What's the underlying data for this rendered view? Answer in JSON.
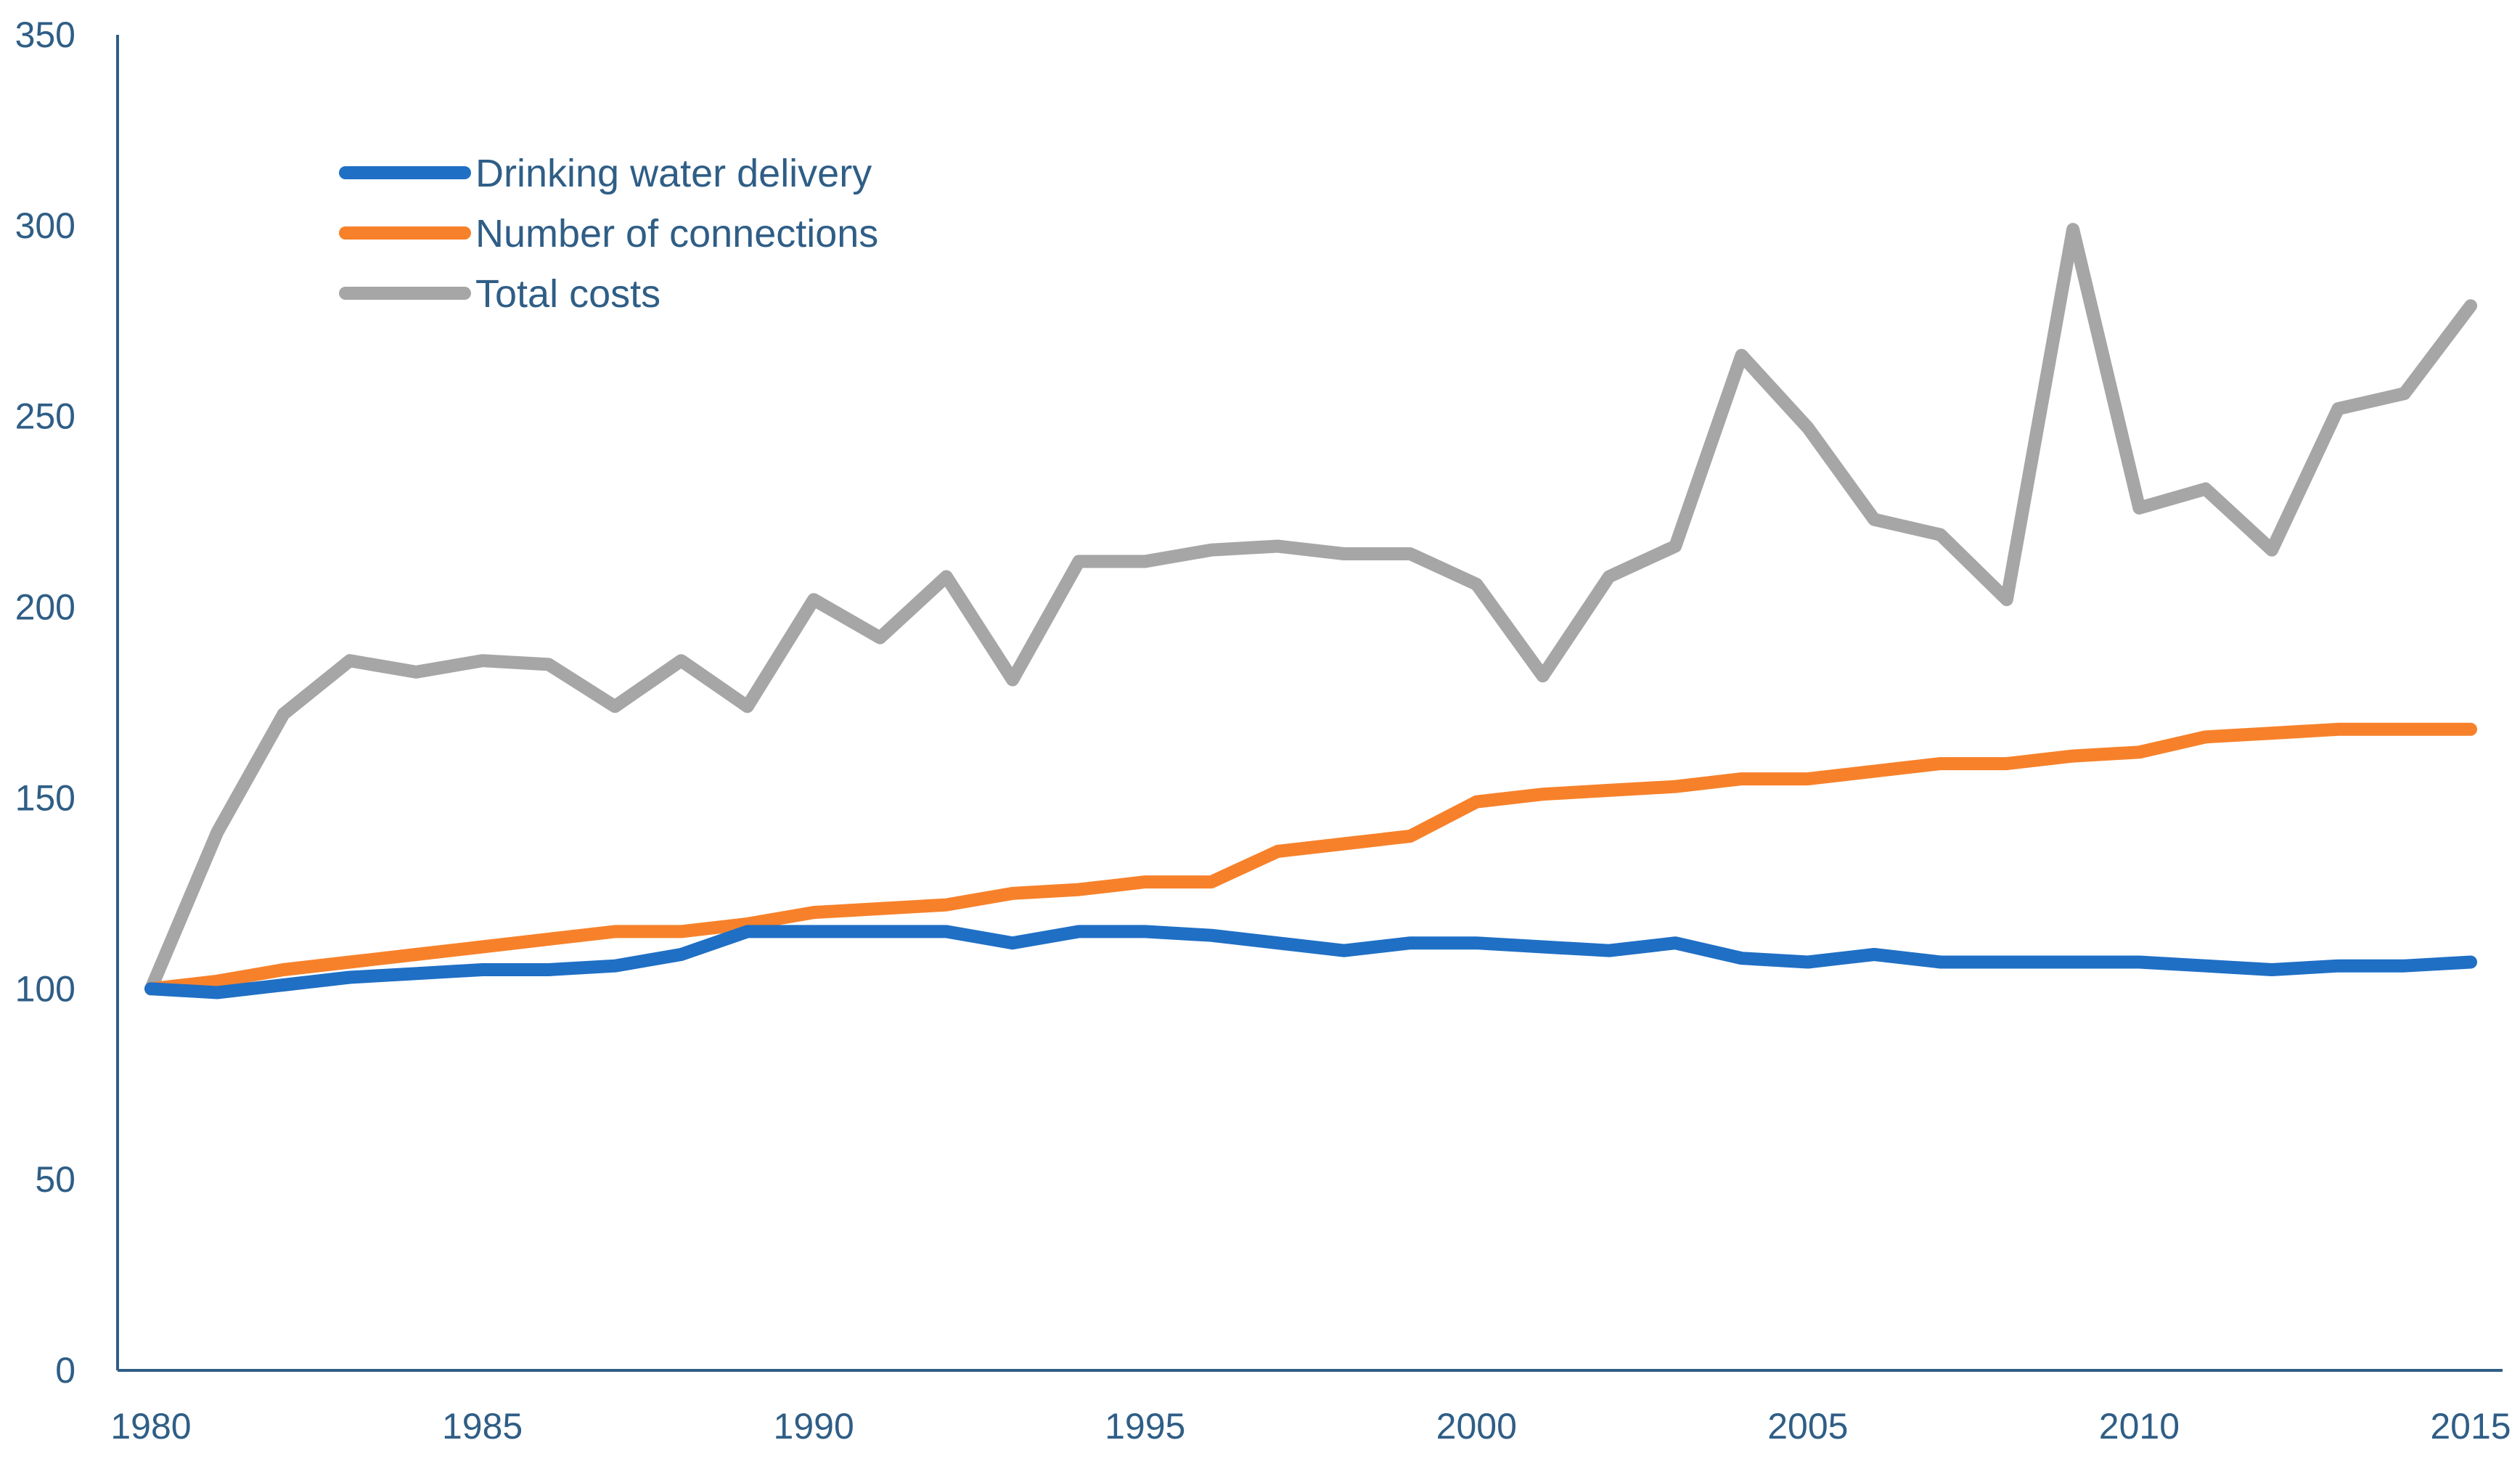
{
  "chart_data": {
    "type": "line",
    "title": "",
    "xlabel": "",
    "ylabel": "",
    "ylim": [
      0,
      350
    ],
    "xlim": [
      1980,
      2015
    ],
    "y_ticks": [
      0,
      50,
      100,
      150,
      200,
      250,
      300,
      350
    ],
    "x_ticks": [
      1980,
      1985,
      1990,
      1995,
      2000,
      2005,
      2010,
      2015
    ],
    "grid": false,
    "legend_position": "top-left",
    "x": [
      1980,
      1981,
      1982,
      1983,
      1984,
      1985,
      1986,
      1987,
      1988,
      1989,
      1990,
      1991,
      1992,
      1993,
      1994,
      1995,
      1996,
      1997,
      1998,
      1999,
      2000,
      2001,
      2002,
      2003,
      2004,
      2005,
      2006,
      2007,
      2008,
      2009,
      2010,
      2011,
      2012,
      2013,
      2014,
      2015
    ],
    "series": [
      {
        "name": "Drinking water delivery",
        "color": "#1f6fc5",
        "values": [
          100,
          99,
          101,
          103,
          104,
          105,
          105,
          106,
          109,
          115,
          115,
          115,
          115,
          112,
          115,
          115,
          114,
          112,
          110,
          112,
          112,
          111,
          110,
          112,
          108,
          107,
          109,
          107,
          107,
          107,
          107,
          106,
          105,
          106,
          106,
          107
        ]
      },
      {
        "name": "Number of connections",
        "color": "#f7812a",
        "values": [
          100,
          102,
          105,
          107,
          109,
          111,
          113,
          115,
          115,
          117,
          120,
          121,
          122,
          125,
          126,
          128,
          128,
          136,
          138,
          140,
          149,
          151,
          152,
          153,
          155,
          155,
          157,
          159,
          159,
          161,
          162,
          166,
          167,
          168,
          168,
          168
        ]
      },
      {
        "name": "Total costs",
        "color": "#a6a6a6",
        "values": [
          100,
          141,
          172,
          186,
          183,
          186,
          185,
          174,
          186,
          174,
          202,
          192,
          208,
          181,
          212,
          212,
          215,
          216,
          214,
          214,
          206,
          182,
          208,
          216,
          266,
          247,
          223,
          219,
          202,
          299,
          226,
          231,
          215,
          252,
          256,
          279
        ]
      }
    ]
  }
}
